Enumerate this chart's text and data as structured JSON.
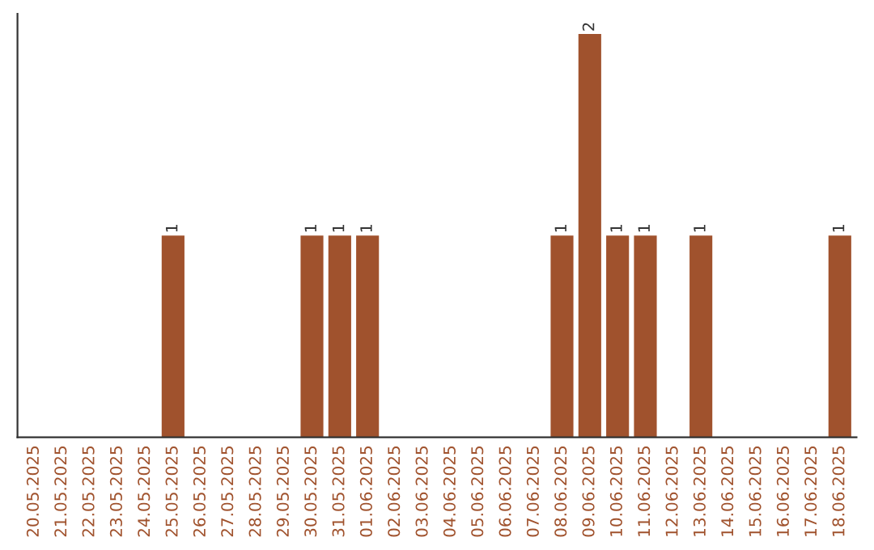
{
  "chart_data": {
    "type": "bar",
    "categories": [
      "20.05.2025",
      "21.05.2025",
      "22.05.2025",
      "23.05.2025",
      "24.05.2025",
      "25.05.2025",
      "26.05.2025",
      "27.05.2025",
      "28.05.2025",
      "29.05.2025",
      "30.05.2025",
      "31.05.2025",
      "01.06.2025",
      "02.06.2025",
      "03.06.2025",
      "04.06.2025",
      "05.06.2025",
      "06.06.2025",
      "07.06.2025",
      "08.06.2025",
      "09.06.2025",
      "10.06.2025",
      "11.06.2025",
      "12.06.2025",
      "13.06.2025",
      "14.06.2025",
      "15.06.2025",
      "16.06.2025",
      "17.06.2025",
      "18.06.2025"
    ],
    "values": [
      0,
      0,
      0,
      0,
      0,
      1,
      0,
      0,
      0,
      0,
      1,
      1,
      1,
      0,
      0,
      0,
      0,
      0,
      0,
      1,
      2,
      1,
      1,
      0,
      1,
      0,
      0,
      0,
      0,
      1
    ],
    "value_labels": [
      null,
      null,
      null,
      null,
      null,
      "1",
      null,
      null,
      null,
      null,
      "1",
      "1",
      "1",
      null,
      null,
      null,
      null,
      null,
      null,
      "1",
      "2",
      "1",
      "1",
      null,
      "1",
      null,
      null,
      null,
      null,
      "1"
    ],
    "color": "#a0522d",
    "tick_labels": "x",
    "grid": false,
    "legend": false
  }
}
